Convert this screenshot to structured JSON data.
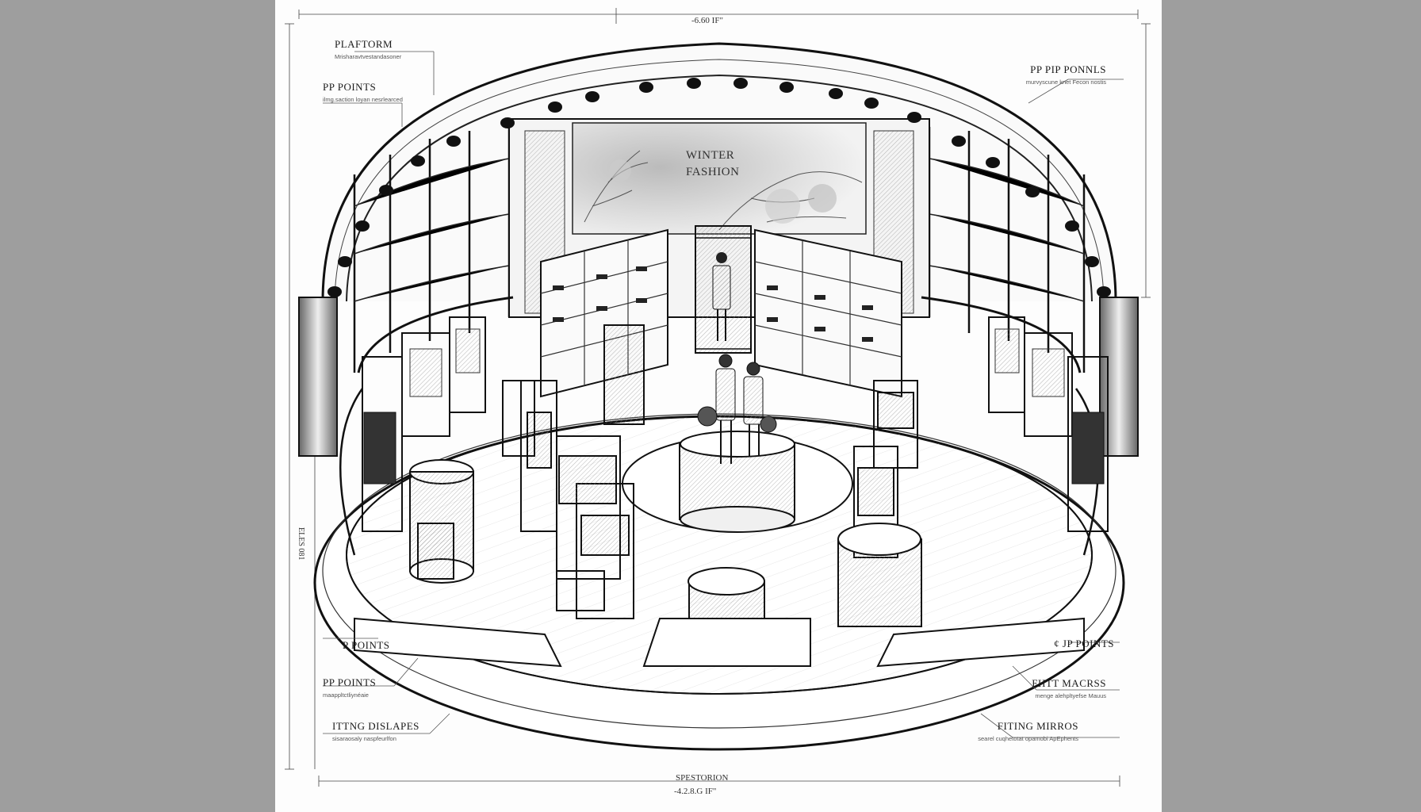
{
  "callouts": {
    "platform": {
      "title": "PLAFTORM",
      "sub": "Mrisharavtvestandasoner"
    },
    "pp_points_tl": {
      "title": "PP POINTS",
      "sub": "ilmg.saction loyan nesrlearced"
    },
    "pp_pip_ponnls": {
      "title": "PP PIP PONNLS",
      "sub": "murvyscune knet Fecon nostis"
    },
    "p_poins": {
      "title": "P POINTS",
      "sub": ""
    },
    "pp_points_bl": {
      "title": "PP POINTS",
      "sub": "maappltctliynéaie"
    },
    "ittng_dislapes": {
      "title": "ITTNG DISLAPES",
      "sub": "sisaraosaly naspfeurlfon"
    },
    "jp_points": {
      "title": "¢ JP POINTS",
      "sub": ""
    },
    "fhtt_macrss": {
      "title": "FHTT MACRSS",
      "sub": "menge alehpltyefse Mauus"
    },
    "fiting_mirros": {
      "title": "FITING MIRROS",
      "sub": "searel cuqhetotat opamobi ApEphents"
    }
  },
  "dimensions": {
    "top": "-6.60 IF\"",
    "left_vertical": "ELES 081",
    "bottom_title": "SPESTORION",
    "bottom_value": "-4.2.8.G IF\""
  },
  "signage": {
    "line1": "WINTER",
    "line2": "FASHION"
  }
}
